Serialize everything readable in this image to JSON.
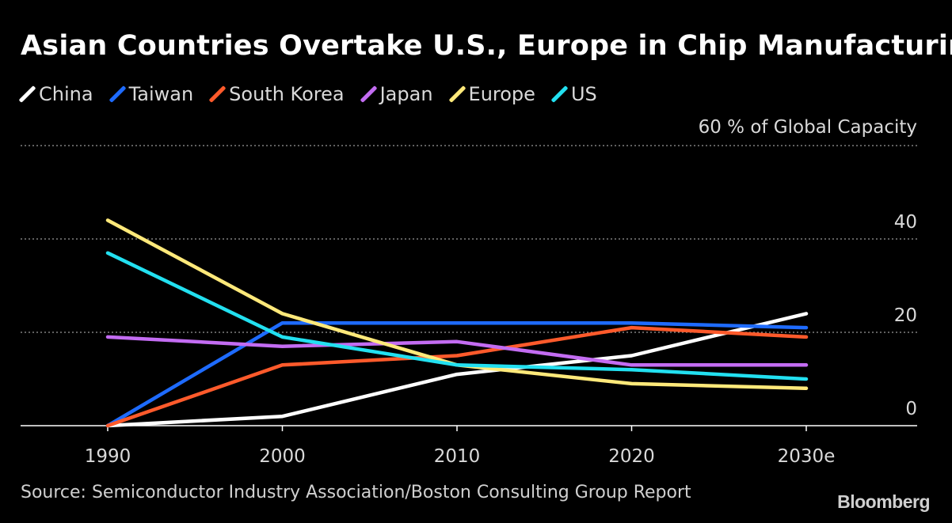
{
  "title": "Asian Countries Overtake U.S., Europe in Chip Manufacturing",
  "source": "Source: Semiconductor Industry Association/Boston Consulting Group Report",
  "brand": "Bloomberg",
  "chart_data": {
    "type": "line",
    "x": [
      "1990",
      "2000",
      "2010",
      "2020",
      "2030e"
    ],
    "y_unit_label": "60 % of Global Capacity",
    "ytick_labels": [
      "0",
      "20",
      "40"
    ],
    "ylim": [
      0,
      60
    ],
    "yticks": [
      0,
      20,
      40,
      60
    ],
    "grid": true,
    "legend_position": "top-left",
    "series": [
      {
        "name": "China",
        "color": "#ffffff",
        "values": [
          0,
          2,
          11,
          15,
          24
        ]
      },
      {
        "name": "Taiwan",
        "color": "#1e6bff",
        "values": [
          0,
          22,
          22,
          22,
          21
        ]
      },
      {
        "name": "South Korea",
        "color": "#ff5a2b",
        "values": [
          0,
          13,
          15,
          21,
          19
        ]
      },
      {
        "name": "Japan",
        "color": "#c36cf2",
        "values": [
          19,
          17,
          18,
          13,
          13
        ]
      },
      {
        "name": "Europe",
        "color": "#ffe97a",
        "values": [
          44,
          24,
          13,
          9,
          8
        ]
      },
      {
        "name": "US",
        "color": "#22e0f0",
        "values": [
          37,
          19,
          13,
          12,
          10
        ]
      }
    ]
  }
}
